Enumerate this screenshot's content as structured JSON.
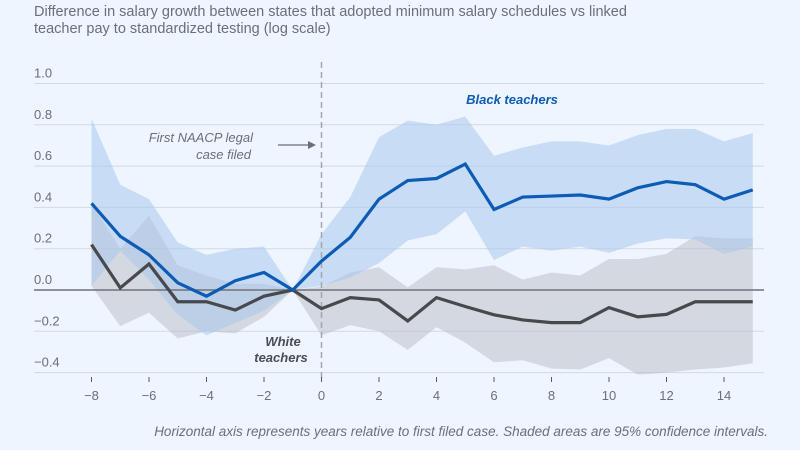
{
  "subtitle": "Difference in salary growth between states that adopted minimum salary schedules vs linked teacher pay to standardized testing (log scale)",
  "footnote": "Horizontal axis represents years relative to first filed case. Shaded areas are 95% confidence intervals.",
  "chart_data": {
    "type": "line",
    "title": "Difference in salary growth between states that adopted minimum salary schedules vs linked teacher pay to standardized testing (log scale)",
    "xlabel": "Years relative to first filed case",
    "ylabel": "",
    "xlim": [
      -8,
      15
    ],
    "ylim": [
      -0.4,
      1.0
    ],
    "grid": true,
    "x": [
      -8,
      -7,
      -6,
      -5,
      -4,
      -3,
      -2,
      -1,
      0,
      1,
      2,
      3,
      4,
      5,
      6,
      7,
      8,
      9,
      10,
      11,
      12,
      13,
      14,
      15
    ],
    "x_ticks": [
      -8,
      -6,
      -4,
      -2,
      0,
      2,
      4,
      6,
      8,
      10,
      12,
      14
    ],
    "x_tick_labels": [
      "−8",
      "−6",
      "−4",
      "−2",
      "0",
      "2",
      "4",
      "6",
      "8",
      "10",
      "12",
      "14"
    ],
    "y_ticks": [
      1.0,
      0.8,
      0.6,
      0.4,
      0.2,
      0.0,
      -0.2,
      -0.4
    ],
    "y_tick_labels": [
      "1.0",
      "0.8",
      "0.6",
      "0.4",
      "0.2",
      "0.0",
      "−0.2",
      "−0.4"
    ],
    "series": [
      {
        "name": "Black teachers",
        "color": "#0c5bb5",
        "band_color": "#a9c8ec",
        "values": [
          0.42,
          0.26,
          0.17,
          0.035,
          -0.03,
          0.045,
          0.085,
          0.0,
          0.14,
          0.255,
          0.44,
          0.53,
          0.54,
          0.61,
          0.39,
          0.45,
          0.455,
          0.46,
          0.44,
          0.495,
          0.525,
          0.51,
          0.44,
          0.485
        ],
        "ci_upper": [
          0.83,
          0.51,
          0.44,
          0.23,
          0.17,
          0.2,
          0.21,
          0.0,
          0.27,
          0.45,
          0.74,
          0.82,
          0.8,
          0.84,
          0.65,
          0.69,
          0.72,
          0.72,
          0.7,
          0.75,
          0.78,
          0.78,
          0.72,
          0.76
        ],
        "ci_lower": [
          0.02,
          0.19,
          0.05,
          -0.12,
          -0.22,
          -0.16,
          -0.1,
          0.0,
          0.02,
          0.06,
          0.13,
          0.24,
          0.27,
          0.38,
          0.145,
          0.21,
          0.19,
          0.21,
          0.18,
          0.225,
          0.25,
          0.245,
          0.175,
          0.21
        ]
      },
      {
        "name": "White teachers",
        "color": "#48494c",
        "band_color": "#b8bcc4",
        "values": [
          0.22,
          0.01,
          0.126,
          -0.057,
          -0.057,
          -0.097,
          -0.03,
          0.0,
          -0.09,
          -0.037,
          -0.048,
          -0.15,
          -0.037,
          -0.08,
          -0.12,
          -0.145,
          -0.158,
          -0.158,
          -0.085,
          -0.13,
          -0.118,
          -0.057,
          -0.057,
          -0.057
        ],
        "ci_upper": [
          0.42,
          0.2,
          0.36,
          0.12,
          0.07,
          0.03,
          0.03,
          0.0,
          0.016,
          0.085,
          0.11,
          0.013,
          0.11,
          0.1,
          0.12,
          0.05,
          0.085,
          0.07,
          0.15,
          0.15,
          0.175,
          0.26,
          0.25,
          0.25
        ],
        "ci_lower": [
          0.02,
          -0.175,
          -0.11,
          -0.235,
          -0.2,
          -0.21,
          -0.13,
          0.0,
          -0.22,
          -0.17,
          -0.2,
          -0.29,
          -0.18,
          -0.255,
          -0.35,
          -0.34,
          -0.38,
          -0.385,
          -0.33,
          -0.41,
          -0.4,
          -0.385,
          -0.375,
          -0.355
        ]
      }
    ],
    "annotations": [
      {
        "text_line1": "First NAACP legal",
        "text_line2": "case filed",
        "x": 0,
        "type": "vertical-dashed-line"
      },
      {
        "text": "Black teachers",
        "series": "Black teachers"
      },
      {
        "text_line1": "White",
        "text_line2": "teachers",
        "series": "White teachers"
      }
    ]
  }
}
